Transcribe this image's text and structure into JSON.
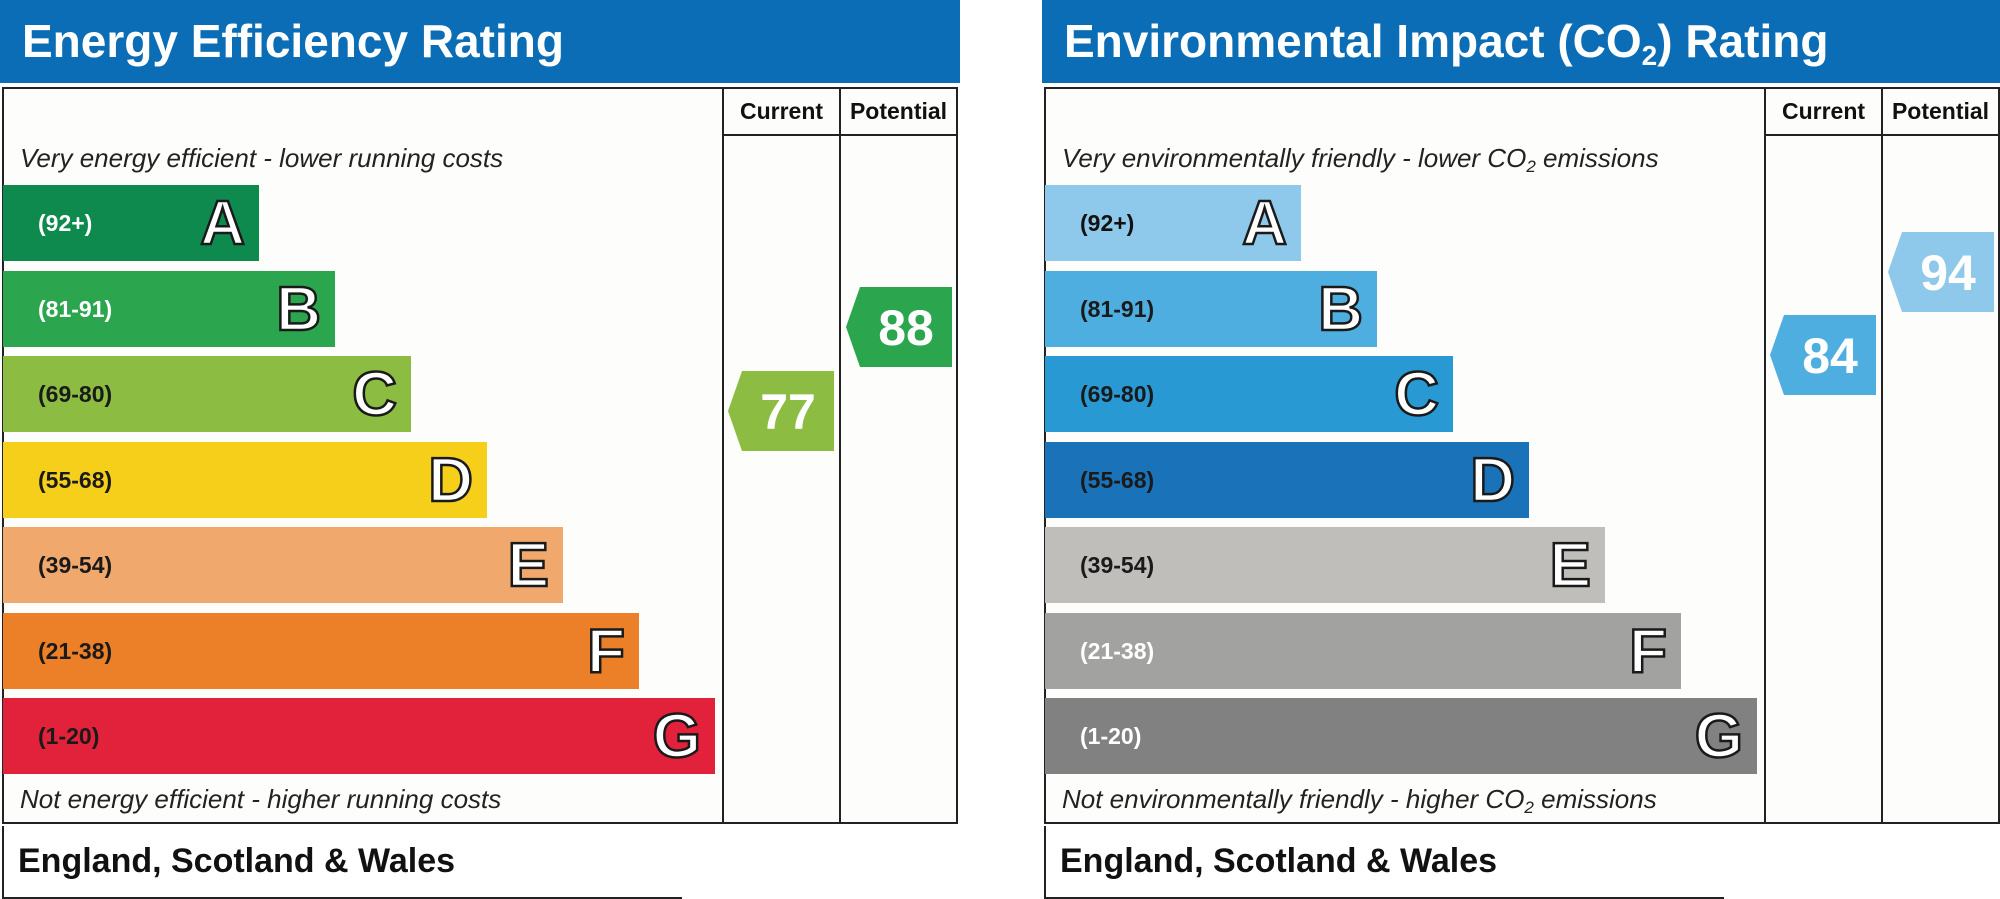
{
  "chart_data": [
    {
      "type": "bar",
      "title": "Energy Efficiency Rating",
      "columns": [
        "Current",
        "Potential"
      ],
      "top_note": "Very energy efficient - lower running costs",
      "bottom_note": "Not energy efficient - higher running costs",
      "footer": "England, Scotland & Wales",
      "categories": [
        "A",
        "B",
        "C",
        "D",
        "E",
        "F",
        "G"
      ],
      "bands": [
        {
          "letter": "A",
          "range": "(92+)",
          "color": "#0f8a4e",
          "range_color": "#ffffff"
        },
        {
          "letter": "B",
          "range": "(81-91)",
          "color": "#2ba64f",
          "range_color": "#ffffff"
        },
        {
          "letter": "C",
          "range": "(69-80)",
          "color": "#8cbd42",
          "range_color": "#1a1a1a"
        },
        {
          "letter": "D",
          "range": "(55-68)",
          "color": "#f6cf1a",
          "range_color": "#1a1a1a"
        },
        {
          "letter": "E",
          "range": "(39-54)",
          "color": "#f1a86d",
          "range_color": "#1a1a1a"
        },
        {
          "letter": "F",
          "range": "(21-38)",
          "color": "#ec8028",
          "range_color": "#1a1a1a"
        },
        {
          "letter": "G",
          "range": "(1-20)",
          "color": "#e2213a",
          "range_color": "#1a1a1a"
        }
      ],
      "current": {
        "value": 77,
        "color": "#8cbd42"
      },
      "potential": {
        "value": 88,
        "color": "#2ba64f"
      }
    },
    {
      "type": "bar",
      "title_prefix": "Environmental Impact (CO",
      "title_sub": "2",
      "title_suffix": ") Rating",
      "columns": [
        "Current",
        "Potential"
      ],
      "top_note_prefix": "Very environmentally friendly - lower CO",
      "top_note_sub": "2",
      "top_note_suffix": " emissions",
      "bottom_note_prefix": "Not environmentally friendly - higher CO",
      "bottom_note_sub": "2",
      "bottom_note_suffix": " emissions",
      "footer": "England, Scotland & Wales",
      "categories": [
        "A",
        "B",
        "C",
        "D",
        "E",
        "F",
        "G"
      ],
      "bands": [
        {
          "letter": "A",
          "range": "(92+)",
          "color": "#8ec8ea",
          "range_color": "#111111"
        },
        {
          "letter": "B",
          "range": "(81-91)",
          "color": "#4eaedf",
          "range_color": "#1a1a1a"
        },
        {
          "letter": "C",
          "range": "(69-80)",
          "color": "#2899d3",
          "range_color": "#1a1a1a"
        },
        {
          "letter": "D",
          "range": "(55-68)",
          "color": "#1a72b9",
          "range_color": "#1a1a1a"
        },
        {
          "letter": "E",
          "range": "(39-54)",
          "color": "#bfbebb",
          "range_color": "#1a1a1a"
        },
        {
          "letter": "F",
          "range": "(21-38)",
          "color": "#a2a2a1",
          "range_color": "#ffffff"
        },
        {
          "letter": "G",
          "range": "(1-20)",
          "color": "#818181",
          "range_color": "#ffffff"
        }
      ],
      "current": {
        "value": 84,
        "color": "#4eaedf"
      },
      "potential": {
        "value": 94,
        "color": "#8ec8ea"
      }
    }
  ]
}
